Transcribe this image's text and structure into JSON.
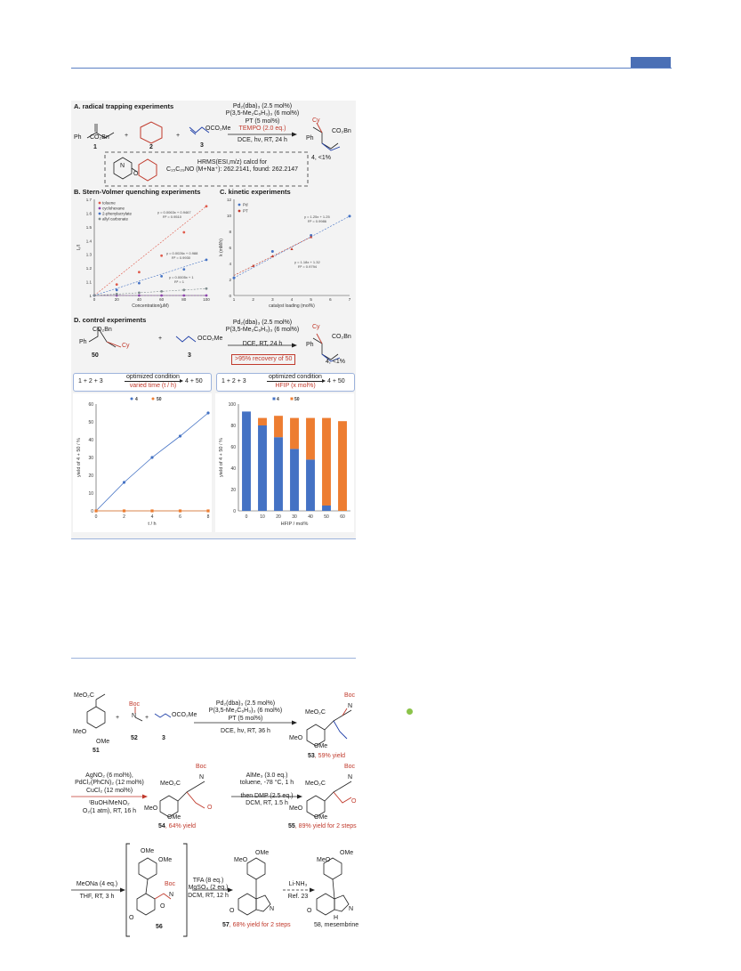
{
  "colors": {
    "rule": "#5b7fc4",
    "tab": "#4a6fb5",
    "panel": "#f3f3f3",
    "blue": "#4472c4",
    "orange": "#ed7d31",
    "red": "#c0392b"
  },
  "panelA": {
    "title": "A. radical trapping experiments",
    "cond": [
      "Pd₂(dba)₃ (2.5 mol%)",
      "P(3,5-Me₂C₆H₃)₃ (6 mol%)",
      "PT (5 mol%)",
      "TEMPO (2.0 eq.)",
      "DCE, hν, RT, 24 h"
    ],
    "sm_sub": "CO₂Bn",
    "sm_ph": "Ph",
    "plus1": "+",
    "plus2": "+",
    "n1": "1",
    "n2": "2",
    "n3": "3",
    "n3_sub": "OCO₂Me",
    "prod_cy": "Cy",
    "prod_sub": "CO₂Bn",
    "prod_ph": "Ph",
    "prod_label": "4, <1%",
    "hrms": [
      "HRMS(ESI,m/z) calcd for",
      "C₁₅C₂₉NO (M+Na⁺): 262.2141, found: 262.2147"
    ],
    "n_atom": "N",
    "o_atom": "O"
  },
  "panelB": {
    "title": "B. Stern-Volmer quenching experiments"
  },
  "panelC": {
    "title": "C. kinetic experiments"
  },
  "panelD": {
    "title": "D. control experiments",
    "sm_sub": "CO₂Bn",
    "sm_ph": "Ph",
    "sm_cy": "Cy",
    "sm_label": "50",
    "n3": "3",
    "n3_sub": "OCO₂Me",
    "plus": "+",
    "cond": [
      "Pd₂(dba)₃ (2.5 mol%)",
      "P(3,5-Me₂C₆H₃)₃ (6 mol%)",
      "DCE, RT, 24 h"
    ],
    "recovery": ">95% recovery of 50",
    "prod_cy": "Cy",
    "prod_sub": "CO₂Bn",
    "prod_ph": "Ph",
    "prod_label": "4, <1%",
    "box1": {
      "lhs": "1 + 2 + 3",
      "top": "optimized condition",
      "bottom": "varied time (t / h)",
      "rhs": "4 + 50"
    },
    "box2": {
      "lhs": "1 + 2 + 3",
      "top": "optimized condition",
      "bottom": "HFIP (x mol%)",
      "rhs": "4 + 50"
    }
  },
  "chart_data": [
    {
      "type": "scatter",
      "title": "",
      "xlabel": "Concentration(μM)",
      "ylabel": "I₀/I",
      "xlim": [
        0,
        100
      ],
      "ylim": [
        1,
        1.7
      ],
      "x": [
        0,
        20,
        40,
        60,
        80,
        100
      ],
      "series": [
        {
          "name": "toluene",
          "values": [
            1.0,
            1.08,
            1.17,
            1.29,
            1.46,
            1.65
          ],
          "color": "#e05a4b",
          "fit": "y = 0.0063x + 0.9467",
          "r2": "R² = 0.9510"
        },
        {
          "name": "cyclohexane",
          "values": [
            1.0,
            1.0,
            1.0,
            1.0,
            1.0,
            1.0
          ],
          "color": "#8e44ad",
          "fit": "",
          "r2": ""
        },
        {
          "name": "2-phenylacrylate",
          "values": [
            1.0,
            1.04,
            1.09,
            1.14,
            1.19,
            1.26
          ],
          "color": "#4472c4",
          "fit": "y = 0.0026x + 0.988",
          "r2": "R² = 0.9930"
        },
        {
          "name": "allyl carbonate",
          "values": [
            1.0,
            1.01,
            1.02,
            1.03,
            1.04,
            1.05
          ],
          "color": "#7f8c8d",
          "fit": "y = 0.0005x + 1",
          "r2": "R² = 1"
        }
      ]
    },
    {
      "type": "scatter",
      "title": "",
      "xlabel": "catalyst loading (mol%)",
      "ylabel": "k (mM/h)",
      "xlim": [
        1,
        7
      ],
      "ylim": [
        0,
        12
      ],
      "series": [
        {
          "name": "Pd",
          "x": [
            1,
            3,
            5,
            7
          ],
          "values": [
            2.2,
            5.5,
            7.5,
            9.9
          ],
          "color": "#4472c4",
          "fit": "y = 1.25x + 1.25",
          "r2": "R² = 0.9986"
        },
        {
          "name": "PT",
          "x": [
            2,
            3,
            4,
            5
          ],
          "values": [
            3.7,
            4.9,
            5.8,
            7.3
          ],
          "color": "#c0392b",
          "fit": "y = 1.18x + 1.32",
          "r2": "R² = 0.9794"
        }
      ]
    },
    {
      "type": "line",
      "title": "",
      "xlabel": "t / h",
      "ylabel": "yield of 4 + 50 / %",
      "xlim": [
        0,
        8
      ],
      "ylim": [
        0,
        60
      ],
      "x": [
        0,
        2,
        4,
        6,
        8
      ],
      "series": [
        {
          "name": "4",
          "values": [
            0,
            16,
            30,
            42,
            55
          ],
          "color": "#4472c4"
        },
        {
          "name": "50",
          "values": [
            0,
            0,
            0,
            0,
            0
          ],
          "color": "#ed7d31"
        }
      ]
    },
    {
      "type": "bar",
      "title": "",
      "xlabel": "HFIP / mol%",
      "ylabel": "yield of 4 + 50 / %",
      "ylim": [
        0,
        100
      ],
      "categories": [
        "0",
        "10",
        "20",
        "30",
        "40",
        "50",
        "60"
      ],
      "series": [
        {
          "name": "4",
          "values": [
            93,
            80,
            69,
            58,
            48,
            5,
            0
          ],
          "color": "#4472c4"
        },
        {
          "name": "50",
          "values": [
            0,
            7,
            20,
            29,
            39,
            82,
            84
          ],
          "color": "#ed7d31"
        }
      ]
    }
  ],
  "synthesis": {
    "s1": {
      "meo2c": "MeO₂C",
      "meo": "MeO",
      "ome": "OMe",
      "label": "51",
      "boc": "Boc",
      "n": "N",
      "label52": "52",
      "label3": "3",
      "oco2me": "OCO₂Me",
      "plus": "+"
    },
    "cond1": [
      "Pd₂(dba)₃ (2.5 mol%)",
      "P(3,5-Me₂C₆H₃)₃ (6 mol%)",
      "PT (5 mol%)",
      "DCE, hν, RT, 36 h"
    ],
    "p53": {
      "num": "53",
      "yield": ", 59% yield"
    },
    "cond2": [
      "AgNO₂ (6 mol%),",
      "PdCl₂(PhCN)₂ (12 mol%)",
      "CuCl₂ (12 mol%)",
      "ᵗBuOH/MeNO₂",
      "O₂(1 atm), RT, 16 h"
    ],
    "p54": {
      "num": "54",
      "yield": ", 64% yield"
    },
    "cond3": [
      "AlMe₃ (3.0 eq.)",
      "toluene, -78 °C, 1 h",
      "then DMP (2.5 eq.)",
      "DCM, RT, 1.5 h"
    ],
    "p55": {
      "num": "55",
      "yield": ", 89% yield for 2 steps"
    },
    "cond4": [
      "MeONa (4 eq.)",
      "THF, RT, 3 h"
    ],
    "p56": {
      "num": "56"
    },
    "cond5": [
      "TFA (8 eq.)",
      "MgSO₄ (2 eq.)",
      "DCM, RT, 12 h"
    ],
    "p57": {
      "num": "57",
      "yield": ", 68% yield for 2 steps"
    },
    "cond6": [
      "Li-NH₃",
      "Ref. 23"
    ],
    "p58": {
      "label": "58, mesembrine"
    },
    "h": "H",
    "o": "O"
  }
}
